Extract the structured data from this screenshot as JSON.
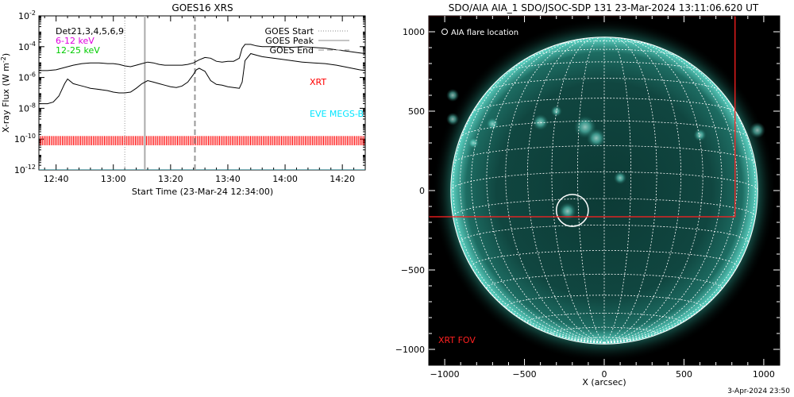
{
  "chart_data": [
    {
      "type": "line",
      "title": "GOES16 XRS",
      "xlabel": "Start Time (23-Mar-24 12:34:00)",
      "ylabel": "X-ray Flux (W m^-2)",
      "ylabel_main": "X-ray Flux (W m",
      "ylabel_exp": "-2",
      "ylabel_close": ")",
      "y_scale": "log",
      "xlim_minutes": [
        0,
        114
      ],
      "ylim_exp": [
        -12,
        -2
      ],
      "x_ticks": [
        {
          "label": "12:40",
          "minutes": 6
        },
        {
          "label": "13:00",
          "minutes": 26
        },
        {
          "label": "13:20",
          "minutes": 46
        },
        {
          "label": "13:40",
          "minutes": 66
        },
        {
          "label": "14:00",
          "minutes": 86
        },
        {
          "label": "14:20",
          "minutes": 106
        }
      ],
      "y_ticks": [
        {
          "base": "10",
          "exp": "-12",
          "value": -12
        },
        {
          "base": "10",
          "exp": "-10",
          "value": -10
        },
        {
          "base": "10",
          "exp": "-8",
          "value": -8
        },
        {
          "base": "10",
          "exp": "-6",
          "value": -6
        },
        {
          "base": "10",
          "exp": "-4",
          "value": -4
        },
        {
          "base": "10",
          "exp": "-2",
          "value": -2
        }
      ],
      "legend_left": [
        {
          "text": "Det21,3,4,5,6,9",
          "color": "#000000"
        },
        {
          "text": "6-12 keV",
          "color": "#e000e0"
        },
        {
          "text": "12-25 keV",
          "color": "#00cc00"
        }
      ],
      "legend_right": [
        {
          "text": "GOES Start",
          "style": "dotted"
        },
        {
          "text": "GOES Peak",
          "style": "solid"
        },
        {
          "text": "GOES End",
          "style": "dashed"
        }
      ],
      "markers_minutes": {
        "start": 30,
        "peak": 37,
        "end": 54.5
      },
      "label_xrt": {
        "text": "XRT",
        "color": "#ff0000"
      },
      "label_eve": {
        "text": "EVE MEGS-B",
        "color": "#00e5ff"
      },
      "series": [
        {
          "name": "",
          "role": "long_channel",
          "x_minutes": [
            0,
            3,
            6,
            9,
            12,
            15,
            18,
            21,
            24,
            26,
            28,
            30,
            32,
            34,
            36,
            38,
            40,
            42,
            44,
            46,
            48,
            50,
            52,
            54,
            56,
            58,
            60,
            62,
            64,
            66,
            68,
            70,
            71,
            72,
            74,
            76,
            78,
            80,
            84,
            88,
            92,
            96,
            100,
            104,
            108,
            112,
            114
          ],
          "log_flux": [
            -5.55,
            -5.55,
            -5.5,
            -5.35,
            -5.2,
            -5.1,
            -5.05,
            -5.05,
            -5.1,
            -5.1,
            -5.15,
            -5.25,
            -5.3,
            -5.2,
            -5.1,
            -5.0,
            -5.05,
            -5.15,
            -5.2,
            -5.2,
            -5.2,
            -5.2,
            -5.15,
            -5.05,
            -4.85,
            -4.7,
            -4.75,
            -4.95,
            -5.0,
            -4.95,
            -4.95,
            -4.75,
            -4.1,
            -3.85,
            -3.85,
            -3.95,
            -4.0,
            -4.0,
            -4.0,
            -4.05,
            -4.0,
            -4.05,
            -4.1,
            -4.2,
            -4.3,
            -4.4,
            -4.45
          ]
        },
        {
          "name": "",
          "role": "short_channel",
          "x_minutes": [
            0,
            3,
            5,
            7,
            9,
            10,
            12,
            14,
            16,
            18,
            20,
            22,
            24,
            26,
            28,
            30,
            32,
            34,
            36,
            38,
            40,
            42,
            44,
            46,
            48,
            50,
            52,
            54,
            55,
            56,
            58,
            60,
            62,
            64,
            66,
            68,
            70,
            71,
            72,
            74,
            76,
            78,
            80,
            84,
            88,
            92,
            96,
            100,
            104,
            108,
            112,
            114
          ],
          "log_flux": [
            -7.7,
            -7.7,
            -7.6,
            -7.2,
            -6.4,
            -6.1,
            -6.4,
            -6.5,
            -6.6,
            -6.7,
            -6.75,
            -6.8,
            -6.85,
            -6.95,
            -7.0,
            -7.0,
            -6.95,
            -6.7,
            -6.4,
            -6.2,
            -6.3,
            -6.4,
            -6.5,
            -6.6,
            -6.65,
            -6.55,
            -6.3,
            -5.8,
            -5.5,
            -5.4,
            -5.6,
            -6.2,
            -6.45,
            -6.5,
            -6.6,
            -6.65,
            -6.7,
            -6.3,
            -4.9,
            -4.45,
            -4.55,
            -4.65,
            -4.7,
            -4.8,
            -4.9,
            -5.0,
            -5.05,
            -5.1,
            -5.2,
            -5.35,
            -5.5,
            -5.55
          ]
        }
      ],
      "xrt_bar_log_range": [
        -10.4,
        -9.8
      ],
      "eve_log_level": -12.05
    },
    {
      "type": "image",
      "title": "SDO/AIA AIA_1 SDO/JSOC-SDP 131 23-Mar-2024 13:11:06.620 UT",
      "xlabel": "X (arcsec)",
      "xlim": [
        -1100,
        1100
      ],
      "ylim": [
        -1100,
        1100
      ],
      "x_ticks": [
        -1000,
        -500,
        0,
        500,
        1000
      ],
      "y_ticks": [
        -1000,
        -500,
        0,
        500,
        1000
      ],
      "solar_radius_arcsec": 962,
      "legend": "AIA flare location",
      "flare_location": {
        "x": -200,
        "y": -125,
        "radius": 100
      },
      "xrt_fov": {
        "label": "XRT FOV",
        "x0": -1100,
        "x1": 820,
        "y0": -165,
        "y1": 1100,
        "color": "#ff2020"
      },
      "grid_spacing_deg": 10,
      "timestamp": "3-Apr-2024 23:50"
    }
  ]
}
